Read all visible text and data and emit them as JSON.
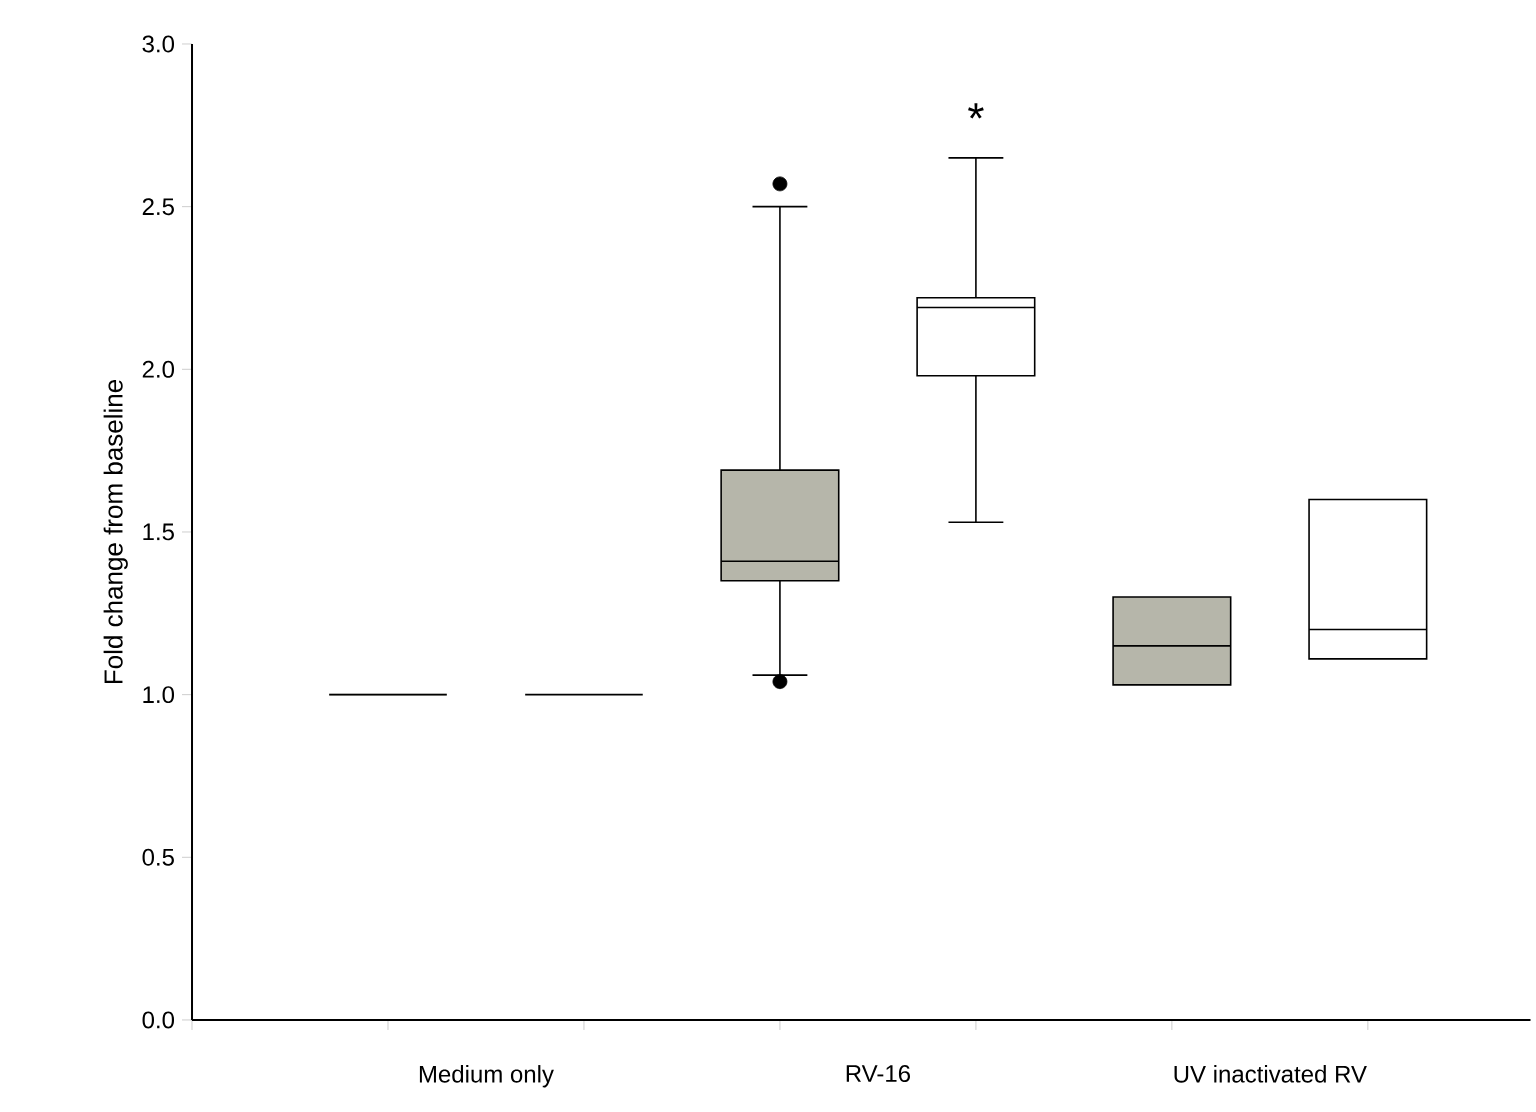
{
  "chart_data": {
    "type": "box",
    "ylabel": "Fold change from baseline",
    "categories": [
      "Medium only",
      "RV-16",
      "UV inactivated RV"
    ],
    "ylim": [
      0,
      3
    ],
    "yticks": [
      {
        "value": 0,
        "label": "0.0"
      },
      {
        "value": 0.5,
        "label": "0.5"
      },
      {
        "value": 1,
        "label": "1.0"
      },
      {
        "value": 1.5,
        "label": "1.5"
      },
      {
        "value": 2,
        "label": "2.0"
      },
      {
        "value": 2.5,
        "label": "2.5"
      },
      {
        "value": 3,
        "label": "3.0"
      }
    ],
    "series": [
      {
        "color": "#b6b6aa",
        "boxes": [
          {
            "low": 1.0,
            "q1": 1.0,
            "median": 1.0,
            "q3": 1.0,
            "high": 1.0
          },
          {
            "low": 1.06,
            "q1": 1.35,
            "median": 1.41,
            "q3": 1.69,
            "high": 2.5,
            "outliers": [
              1.04,
              2.57
            ]
          },
          {
            "low": 1.03,
            "q1": 1.03,
            "median": 1.15,
            "q3": 1.3,
            "high": 1.3
          }
        ]
      },
      {
        "color": "#ffffff",
        "boxes": [
          {
            "low": 1.0,
            "q1": 1.0,
            "median": 1.0,
            "q3": 1.0,
            "high": 1.0
          },
          {
            "low": 1.53,
            "q1": 1.98,
            "median": 2.19,
            "q3": 2.22,
            "high": 2.65
          },
          {
            "low": 1.11,
            "q1": 1.11,
            "median": 1.2,
            "q3": 1.6,
            "high": 1.6
          }
        ]
      }
    ],
    "annotations": [
      "*"
    ]
  }
}
